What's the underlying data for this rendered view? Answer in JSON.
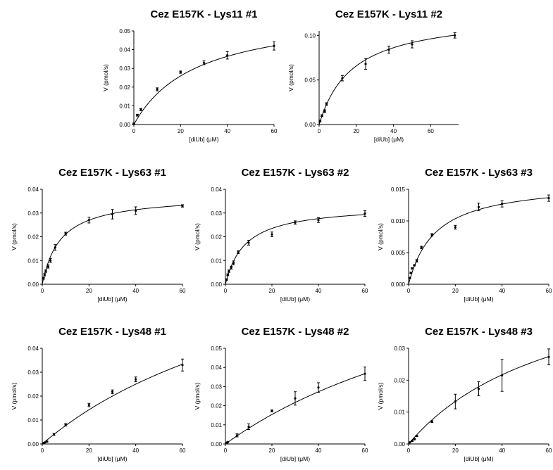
{
  "chart_data": [
    {
      "type": "scatter",
      "title": "Cez E157K - Lys11 #1",
      "xlabel": "[diUb] (μM)",
      "ylabel": "V (pmol/s)",
      "xlim": [
        0,
        60
      ],
      "ylim": [
        0,
        0.05
      ],
      "xticks": [
        0,
        20,
        40,
        60
      ],
      "xtick_labels": [
        "0",
        "20",
        "40",
        "60"
      ],
      "yticks": [
        0,
        0.01,
        0.02,
        0.03,
        0.04,
        0.05
      ],
      "ytick_labels": [
        "0.00",
        "0.01",
        "0.02",
        "0.03",
        "0.04",
        "0.05"
      ],
      "x": [
        0,
        1.5,
        3,
        10,
        20,
        30,
        40,
        60
      ],
      "y": [
        0.0005,
        0.005,
        0.008,
        0.0188,
        0.028,
        0.033,
        0.037,
        0.042
      ],
      "err": [
        0.0003,
        0.0005,
        0.0006,
        0.0008,
        0.0006,
        0.001,
        0.002,
        0.0022
      ],
      "fit": {
        "model": "michaelis-menten",
        "vmax": 0.061,
        "km": 27
      }
    },
    {
      "type": "scatter",
      "title": "Cez E157K - Lys11 #2",
      "xlabel": "[diUb] (μM)",
      "ylabel": "V (pmol/s)",
      "xlim": [
        0,
        75
      ],
      "ylim": [
        0,
        0.105
      ],
      "xticks": [
        0,
        20,
        40,
        60
      ],
      "xtick_labels": [
        "0",
        "20",
        "40",
        "60"
      ],
      "yticks": [
        0,
        0.05,
        0.1
      ],
      "ytick_labels": [
        "0.00",
        "0.05",
        "0.10"
      ],
      "x": [
        0.5,
        1.5,
        3,
        4,
        12.5,
        25,
        37.5,
        50,
        73
      ],
      "y": [
        0.004,
        0.01,
        0.015,
        0.023,
        0.052,
        0.068,
        0.084,
        0.09,
        0.1
      ],
      "err": [
        0.001,
        0.001,
        0.0015,
        0.0015,
        0.003,
        0.006,
        0.004,
        0.004,
        0.003
      ],
      "fit": {
        "model": "michaelis-menten",
        "vmax": 0.125,
        "km": 18
      }
    },
    {
      "type": "scatter",
      "title": "Cez E157K - Lys63 #1",
      "xlabel": "[diUb] (μM)",
      "ylabel": "V (pmol/s)",
      "xlim": [
        0,
        60
      ],
      "ylim": [
        0,
        0.04
      ],
      "xticks": [
        0,
        20,
        40,
        60
      ],
      "xtick_labels": [
        "0",
        "20",
        "40",
        "60"
      ],
      "yticks": [
        0,
        0.01,
        0.02,
        0.03,
        0.04
      ],
      "ytick_labels": [
        "0.00",
        "0.01",
        "0.02",
        "0.03",
        "0.04"
      ],
      "x": [
        0.5,
        1,
        1.5,
        2.5,
        3.5,
        5.5,
        10,
        20,
        30,
        40,
        60
      ],
      "y": [
        0.0025,
        0.004,
        0.0055,
        0.0075,
        0.01,
        0.0155,
        0.0213,
        0.027,
        0.0295,
        0.031,
        0.033
      ],
      "err": [
        0.0004,
        0.0005,
        0.0005,
        0.0007,
        0.0008,
        0.0012,
        0.0006,
        0.0012,
        0.002,
        0.0016,
        0.0005
      ],
      "fit": {
        "model": "michaelis-menten",
        "vmax": 0.0375,
        "km": 7.8
      }
    },
    {
      "type": "scatter",
      "title": "Cez E157K - Lys63 #2",
      "xlabel": "[diUb] (μM)",
      "ylabel": "V (pmol/s)",
      "xlim": [
        0,
        60
      ],
      "ylim": [
        0,
        0.04
      ],
      "xticks": [
        0,
        20,
        40,
        60
      ],
      "xtick_labels": [
        "0",
        "20",
        "40",
        "60"
      ],
      "yticks": [
        0,
        0.01,
        0.02,
        0.03,
        0.04
      ],
      "ytick_labels": [
        "0.00",
        "0.01",
        "0.02",
        "0.03",
        "0.04"
      ],
      "x": [
        0.5,
        1,
        1.5,
        2.5,
        3.5,
        5.5,
        10,
        20,
        30,
        40,
        60
      ],
      "y": [
        0.002,
        0.004,
        0.0055,
        0.007,
        0.009,
        0.0135,
        0.0175,
        0.021,
        0.026,
        0.027,
        0.0298
      ],
      "err": [
        0.0003,
        0.0004,
        0.0005,
        0.0006,
        0.0008,
        0.0006,
        0.001,
        0.001,
        0.0007,
        0.001,
        0.0012
      ],
      "fit": {
        "model": "michaelis-menten",
        "vmax": 0.0335,
        "km": 8.5
      }
    },
    {
      "type": "scatter",
      "title": "Cez E157K - Lys63 #3",
      "xlabel": "[diUb] (μM)",
      "ylabel": "V (pmol/s)",
      "xlim": [
        0,
        60
      ],
      "ylim": [
        0,
        0.015
      ],
      "xticks": [
        0,
        20,
        40,
        60
      ],
      "xtick_labels": [
        "0",
        "20",
        "40",
        "60"
      ],
      "yticks": [
        0,
        0.005,
        0.01,
        0.015
      ],
      "ytick_labels": [
        "0.000",
        "0.005",
        "0.010",
        "0.015"
      ],
      "x": [
        0.5,
        1,
        1.5,
        2.5,
        3.5,
        5.5,
        10,
        20,
        30,
        40,
        60
      ],
      "y": [
        0.001,
        0.0018,
        0.0025,
        0.003,
        0.0037,
        0.0058,
        0.0078,
        0.009,
        0.0122,
        0.0127,
        0.0136
      ],
      "err": [
        0.0001,
        0.0001,
        0.0001,
        0.0001,
        0.0002,
        0.0002,
        0.0002,
        0.0003,
        0.0006,
        0.0005,
        0.0005
      ],
      "fit": {
        "model": "michaelis-menten",
        "vmax": 0.0163,
        "km": 11.5
      }
    },
    {
      "type": "scatter",
      "title": "Cez E157K - Lys48 #1",
      "xlabel": "[diUb] (μM)",
      "ylabel": "V (pmol/s)",
      "xlim": [
        0,
        60
      ],
      "ylim": [
        0,
        0.04
      ],
      "xticks": [
        0,
        20,
        40,
        60
      ],
      "xtick_labels": [
        "0",
        "20",
        "40",
        "60"
      ],
      "yticks": [
        0,
        0.01,
        0.02,
        0.03,
        0.04
      ],
      "ytick_labels": [
        "0.00",
        "0.01",
        "0.02",
        "0.03",
        "0.04"
      ],
      "x": [
        0.5,
        1,
        2,
        5,
        10,
        20,
        30,
        40,
        60
      ],
      "y": [
        0.0003,
        0.0006,
        0.001,
        0.004,
        0.008,
        0.0163,
        0.0218,
        0.027,
        0.033
      ],
      "err": [
        0.0001,
        0.0001,
        0.0002,
        0.0004,
        0.0005,
        0.0007,
        0.0008,
        0.001,
        0.0025
      ],
      "fit": {
        "model": "michaelis-menten",
        "vmax": 0.1,
        "km": 120
      }
    },
    {
      "type": "scatter",
      "title": "Cez E157K - Lys48 #2",
      "xlabel": "[diUb] (μM)",
      "ylabel": "V (pmol/s)",
      "xlim": [
        0,
        60
      ],
      "ylim": [
        0,
        0.05
      ],
      "xticks": [
        0,
        20,
        40,
        60
      ],
      "xtick_labels": [
        "0",
        "20",
        "40",
        "60"
      ],
      "yticks": [
        0,
        0.01,
        0.02,
        0.03,
        0.04,
        0.05
      ],
      "ytick_labels": [
        "0.00",
        "0.01",
        "0.02",
        "0.03",
        "0.04",
        "0.05"
      ],
      "x": [
        0.5,
        1,
        5,
        10,
        20,
        30,
        40,
        60
      ],
      "y": [
        0.0005,
        0.001,
        0.0045,
        0.009,
        0.0173,
        0.0238,
        0.0295,
        0.0367
      ],
      "err": [
        0.0002,
        0.0002,
        0.0008,
        0.0015,
        0.0005,
        0.0035,
        0.0025,
        0.0035
      ],
      "fit": {
        "model": "michaelis-menten",
        "vmax": 0.12,
        "km": 136
      }
    },
    {
      "type": "scatter",
      "title": "Cez E157K - Lys48 #3",
      "xlabel": "[diUb] (μM)",
      "ylabel": "V (pmol/s)",
      "xlim": [
        0,
        60
      ],
      "ylim": [
        0,
        0.03
      ],
      "xticks": [
        0,
        20,
        40,
        60
      ],
      "xtick_labels": [
        "0",
        "20",
        "40",
        "60"
      ],
      "yticks": [
        0,
        0.01,
        0.02,
        0.03
      ],
      "ytick_labels": [
        "0.00",
        "0.01",
        "0.02",
        "0.03"
      ],
      "x": [
        0.5,
        1.5,
        2.5,
        3.5,
        10,
        20,
        30,
        40,
        60
      ],
      "y": [
        0.0005,
        0.001,
        0.0015,
        0.0025,
        0.007,
        0.0133,
        0.0173,
        0.0215,
        0.0273
      ],
      "err": [
        0.0001,
        0.0002,
        0.0002,
        0.0002,
        0.0003,
        0.0023,
        0.0022,
        0.005,
        0.0025
      ],
      "fit": {
        "model": "michaelis-menten",
        "vmax": 0.058,
        "km": 67
      }
    }
  ]
}
